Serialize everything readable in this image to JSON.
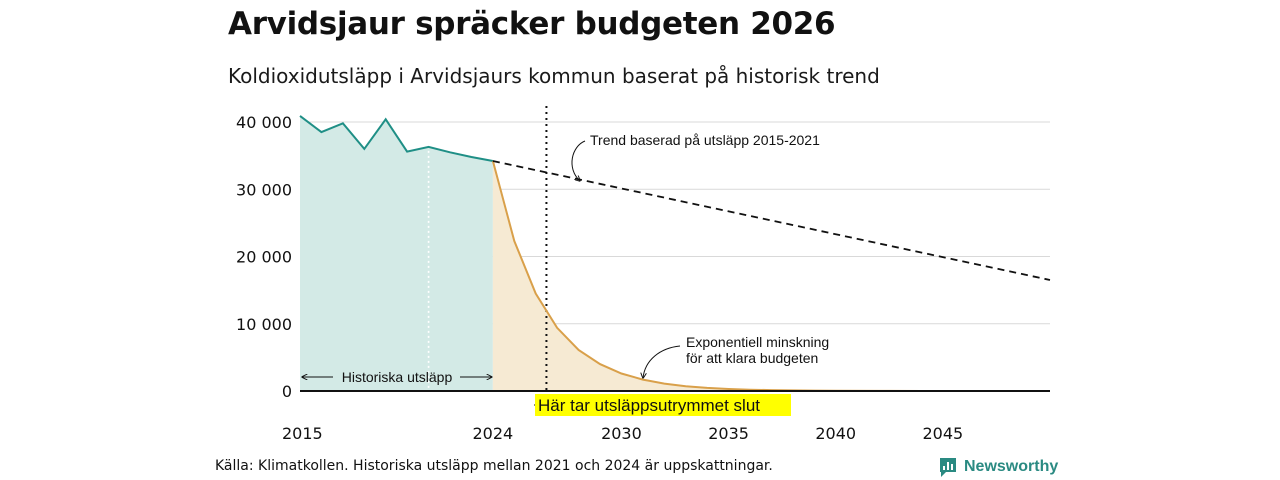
{
  "header": {
    "title": "Arvidsjaur spräcker budgeten 2026",
    "subtitle": "Koldioxidutsläpp i Arvidsjaurs kommun baserat på historisk trend"
  },
  "footer": {
    "source": "Källa: Klimatkollen. Historiska utsläpp mellan 2021 och 2024 är uppskattningar.",
    "brand": "Newsworthy",
    "brand_icon": "newsworthy-logo-icon"
  },
  "colors": {
    "historical_line": "#1f8f86",
    "historical_fill": "#d3eae6",
    "budget_line": "#d9a04a",
    "budget_fill": "#f6ead3",
    "trend_line": "#111111",
    "grid": "#d9d9d9",
    "highlight": "#ffff00"
  },
  "chart_data": {
    "type": "line",
    "xlim": [
      2015,
      2050
    ],
    "ylim": [
      0,
      40000
    ],
    "x_ticks": [
      2015,
      2024,
      2030,
      2035,
      2040,
      2045
    ],
    "x_tick_labels": [
      "2015",
      "2024",
      "2030",
      "2035",
      "2040",
      "2045"
    ],
    "y_ticks": [
      0,
      10000,
      20000,
      30000,
      40000
    ],
    "y_tick_labels": [
      "0",
      "10 000",
      "20 000",
      "30 000",
      "40 000"
    ],
    "grid": true,
    "series": [
      {
        "key": "historical",
        "style": "solid-area",
        "x": [
          2015,
          2016,
          2017,
          2018,
          2019,
          2020,
          2021,
          2022,
          2023,
          2024
        ],
        "y": [
          40900,
          38500,
          39800,
          36000,
          40400,
          35600,
          36300,
          35500,
          34800,
          34200
        ]
      },
      {
        "key": "budget",
        "style": "solid-area",
        "x": [
          2024,
          2025,
          2026,
          2027,
          2028,
          2029,
          2030,
          2031,
          2032,
          2033,
          2034,
          2035,
          2036,
          2037,
          2038,
          2039,
          2040,
          2042,
          2044,
          2046,
          2048,
          2050
        ],
        "y": [
          34200,
          22300,
          14500,
          9400,
          6100,
          4000,
          2600,
          1700,
          1100,
          700,
          460,
          300,
          200,
          130,
          85,
          55,
          35,
          15,
          7,
          3,
          1,
          0
        ]
      },
      {
        "key": "trend",
        "style": "dashed",
        "x": [
          2024,
          2050
        ],
        "y": [
          34200,
          16500
        ]
      }
    ],
    "markers": {
      "estimate_start_year": 2021,
      "budget_exceeded_year": 2026.5
    },
    "annotations": {
      "trend": "Trend baserad på utsläpp 2015-2021",
      "exponential_line1": "Exponentiell minskning",
      "exponential_line2": "för att klara budgeten",
      "historical": "Historiska utsläpp",
      "budget_exceeded": "Här tar utsläppsutrymmet slut"
    }
  }
}
